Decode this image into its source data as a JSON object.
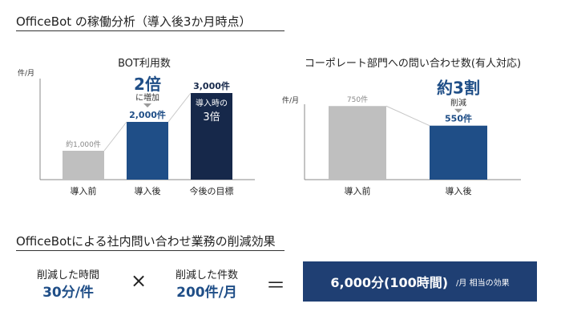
{
  "page": {
    "title": "OfficeBot の稼働分析（導入後3か月時点）"
  },
  "summary": {
    "heading": "OfficeBotによる社内問い合わせ業務の削減効果",
    "time_label": "削減した時間",
    "time_value": "30分/件",
    "times_symbol": "×",
    "count_label": "削減した件数",
    "count_value": "200件/月",
    "equals_symbol": "＝",
    "result_value": "6,000分(100時間)",
    "result_suffix": "/月 相当の効果"
  },
  "colors": {
    "gray_bar": "#bfbfbf",
    "blue_bar": "#1f4e87",
    "navy_bar": "#16284a",
    "accent_text": "#1f4e87",
    "result_box": "#1f3f73"
  },
  "chart_data": [
    {
      "type": "bar",
      "title": "BOT利用数",
      "ylabel": "件/月",
      "categories": [
        "導入前",
        "導入後",
        "今後の目標"
      ],
      "values": [
        1000,
        2000,
        3000
      ],
      "data_labels": [
        "約1,000件",
        "2,000件",
        "3,000件"
      ],
      "ylim": [
        0,
        3500
      ],
      "annotation": {
        "big": "2倍",
        "small": "に増加"
      },
      "inner_note": [
        "導入時の",
        "3倍"
      ]
    },
    {
      "type": "bar",
      "title": "コーポレート部門への問い合わせ数(有人対応)",
      "ylabel": "件/月",
      "categories": [
        "導入前",
        "導入後"
      ],
      "values": [
        750,
        550
      ],
      "data_labels": [
        "750件",
        "550件"
      ],
      "ylim": [
        0,
        850
      ],
      "annotation": {
        "big": "約3割",
        "small": "削減"
      }
    }
  ]
}
